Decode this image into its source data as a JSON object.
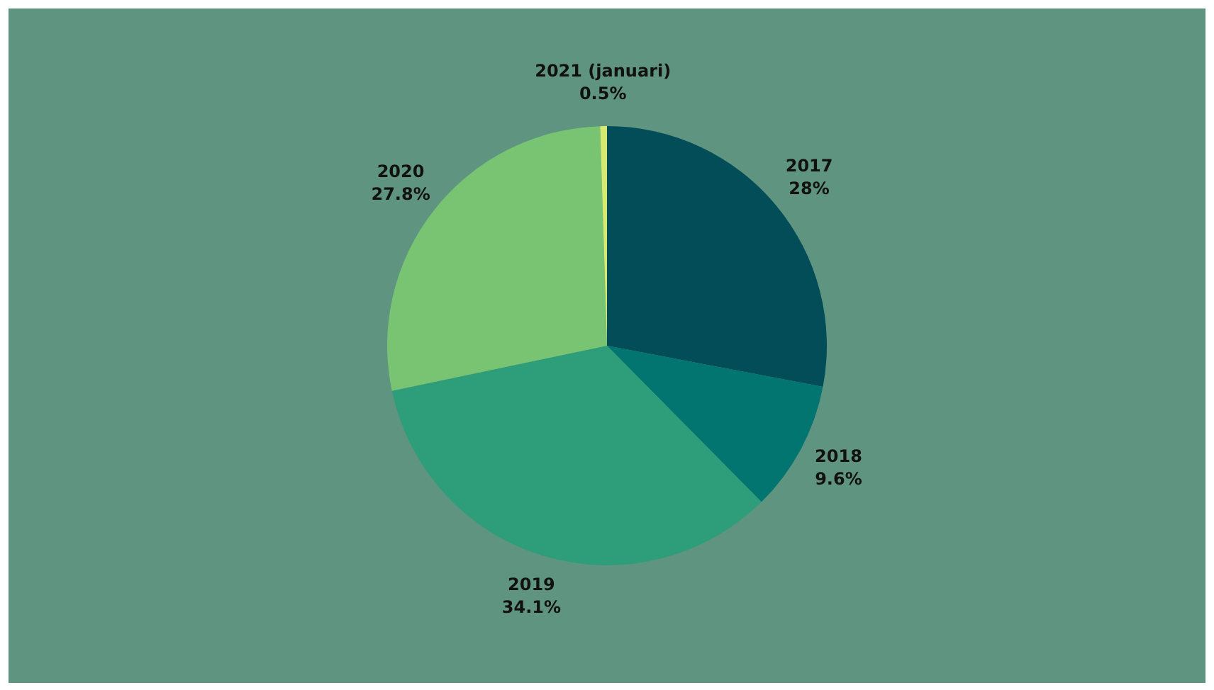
{
  "chart_data": {
    "type": "pie",
    "categories": [
      "2017",
      "2018",
      "2019",
      "2020",
      "2021 (januari)"
    ],
    "values": [
      28,
      9.6,
      34.1,
      27.8,
      0.5
    ],
    "colors": [
      "#024d58",
      "#027570",
      "#2e9d79",
      "#79c472",
      "#d6ea72"
    ],
    "value_labels": [
      "28%",
      "9.6%",
      "34.1%",
      "27.8%",
      "0.5%"
    ],
    "legend": false
  }
}
